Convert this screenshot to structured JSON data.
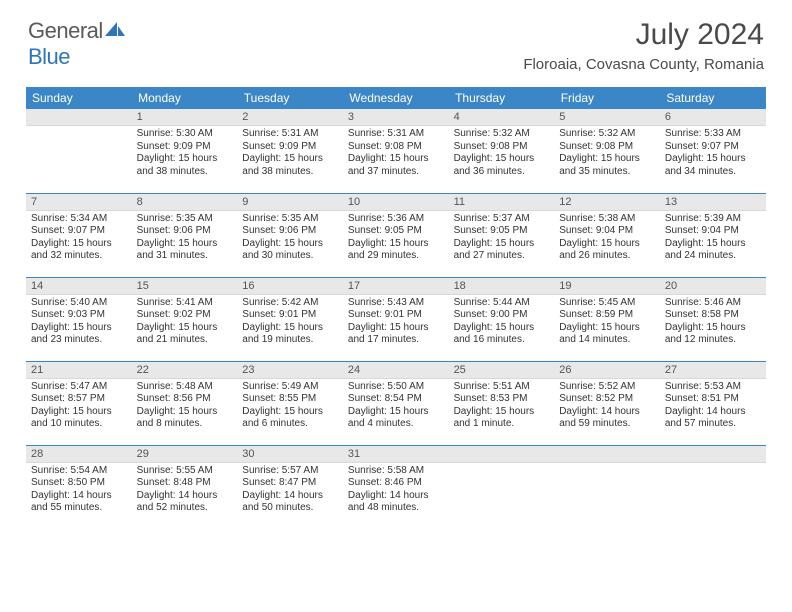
{
  "logo": {
    "word1": "General",
    "word2": "Blue"
  },
  "title": "July 2024",
  "location": "Floroaia, Covasna County, Romania",
  "header_bg": "#3b86c6",
  "daynum_bg": "#e8e8e8",
  "weekdays": [
    "Sunday",
    "Monday",
    "Tuesday",
    "Wednesday",
    "Thursday",
    "Friday",
    "Saturday"
  ],
  "weeks": [
    [
      {
        "n": "",
        "sr": "",
        "ss": "",
        "dl": ""
      },
      {
        "n": "1",
        "sr": "Sunrise: 5:30 AM",
        "ss": "Sunset: 9:09 PM",
        "dl": "Daylight: 15 hours and 38 minutes."
      },
      {
        "n": "2",
        "sr": "Sunrise: 5:31 AM",
        "ss": "Sunset: 9:09 PM",
        "dl": "Daylight: 15 hours and 38 minutes."
      },
      {
        "n": "3",
        "sr": "Sunrise: 5:31 AM",
        "ss": "Sunset: 9:08 PM",
        "dl": "Daylight: 15 hours and 37 minutes."
      },
      {
        "n": "4",
        "sr": "Sunrise: 5:32 AM",
        "ss": "Sunset: 9:08 PM",
        "dl": "Daylight: 15 hours and 36 minutes."
      },
      {
        "n": "5",
        "sr": "Sunrise: 5:32 AM",
        "ss": "Sunset: 9:08 PM",
        "dl": "Daylight: 15 hours and 35 minutes."
      },
      {
        "n": "6",
        "sr": "Sunrise: 5:33 AM",
        "ss": "Sunset: 9:07 PM",
        "dl": "Daylight: 15 hours and 34 minutes."
      }
    ],
    [
      {
        "n": "7",
        "sr": "Sunrise: 5:34 AM",
        "ss": "Sunset: 9:07 PM",
        "dl": "Daylight: 15 hours and 32 minutes."
      },
      {
        "n": "8",
        "sr": "Sunrise: 5:35 AM",
        "ss": "Sunset: 9:06 PM",
        "dl": "Daylight: 15 hours and 31 minutes."
      },
      {
        "n": "9",
        "sr": "Sunrise: 5:35 AM",
        "ss": "Sunset: 9:06 PM",
        "dl": "Daylight: 15 hours and 30 minutes."
      },
      {
        "n": "10",
        "sr": "Sunrise: 5:36 AM",
        "ss": "Sunset: 9:05 PM",
        "dl": "Daylight: 15 hours and 29 minutes."
      },
      {
        "n": "11",
        "sr": "Sunrise: 5:37 AM",
        "ss": "Sunset: 9:05 PM",
        "dl": "Daylight: 15 hours and 27 minutes."
      },
      {
        "n": "12",
        "sr": "Sunrise: 5:38 AM",
        "ss": "Sunset: 9:04 PM",
        "dl": "Daylight: 15 hours and 26 minutes."
      },
      {
        "n": "13",
        "sr": "Sunrise: 5:39 AM",
        "ss": "Sunset: 9:04 PM",
        "dl": "Daylight: 15 hours and 24 minutes."
      }
    ],
    [
      {
        "n": "14",
        "sr": "Sunrise: 5:40 AM",
        "ss": "Sunset: 9:03 PM",
        "dl": "Daylight: 15 hours and 23 minutes."
      },
      {
        "n": "15",
        "sr": "Sunrise: 5:41 AM",
        "ss": "Sunset: 9:02 PM",
        "dl": "Daylight: 15 hours and 21 minutes."
      },
      {
        "n": "16",
        "sr": "Sunrise: 5:42 AM",
        "ss": "Sunset: 9:01 PM",
        "dl": "Daylight: 15 hours and 19 minutes."
      },
      {
        "n": "17",
        "sr": "Sunrise: 5:43 AM",
        "ss": "Sunset: 9:01 PM",
        "dl": "Daylight: 15 hours and 17 minutes."
      },
      {
        "n": "18",
        "sr": "Sunrise: 5:44 AM",
        "ss": "Sunset: 9:00 PM",
        "dl": "Daylight: 15 hours and 16 minutes."
      },
      {
        "n": "19",
        "sr": "Sunrise: 5:45 AM",
        "ss": "Sunset: 8:59 PM",
        "dl": "Daylight: 15 hours and 14 minutes."
      },
      {
        "n": "20",
        "sr": "Sunrise: 5:46 AM",
        "ss": "Sunset: 8:58 PM",
        "dl": "Daylight: 15 hours and 12 minutes."
      }
    ],
    [
      {
        "n": "21",
        "sr": "Sunrise: 5:47 AM",
        "ss": "Sunset: 8:57 PM",
        "dl": "Daylight: 15 hours and 10 minutes."
      },
      {
        "n": "22",
        "sr": "Sunrise: 5:48 AM",
        "ss": "Sunset: 8:56 PM",
        "dl": "Daylight: 15 hours and 8 minutes."
      },
      {
        "n": "23",
        "sr": "Sunrise: 5:49 AM",
        "ss": "Sunset: 8:55 PM",
        "dl": "Daylight: 15 hours and 6 minutes."
      },
      {
        "n": "24",
        "sr": "Sunrise: 5:50 AM",
        "ss": "Sunset: 8:54 PM",
        "dl": "Daylight: 15 hours and 4 minutes."
      },
      {
        "n": "25",
        "sr": "Sunrise: 5:51 AM",
        "ss": "Sunset: 8:53 PM",
        "dl": "Daylight: 15 hours and 1 minute."
      },
      {
        "n": "26",
        "sr": "Sunrise: 5:52 AM",
        "ss": "Sunset: 8:52 PM",
        "dl": "Daylight: 14 hours and 59 minutes."
      },
      {
        "n": "27",
        "sr": "Sunrise: 5:53 AM",
        "ss": "Sunset: 8:51 PM",
        "dl": "Daylight: 14 hours and 57 minutes."
      }
    ],
    [
      {
        "n": "28",
        "sr": "Sunrise: 5:54 AM",
        "ss": "Sunset: 8:50 PM",
        "dl": "Daylight: 14 hours and 55 minutes."
      },
      {
        "n": "29",
        "sr": "Sunrise: 5:55 AM",
        "ss": "Sunset: 8:48 PM",
        "dl": "Daylight: 14 hours and 52 minutes."
      },
      {
        "n": "30",
        "sr": "Sunrise: 5:57 AM",
        "ss": "Sunset: 8:47 PM",
        "dl": "Daylight: 14 hours and 50 minutes."
      },
      {
        "n": "31",
        "sr": "Sunrise: 5:58 AM",
        "ss": "Sunset: 8:46 PM",
        "dl": "Daylight: 14 hours and 48 minutes."
      },
      {
        "n": "",
        "sr": "",
        "ss": "",
        "dl": ""
      },
      {
        "n": "",
        "sr": "",
        "ss": "",
        "dl": ""
      },
      {
        "n": "",
        "sr": "",
        "ss": "",
        "dl": ""
      }
    ]
  ]
}
